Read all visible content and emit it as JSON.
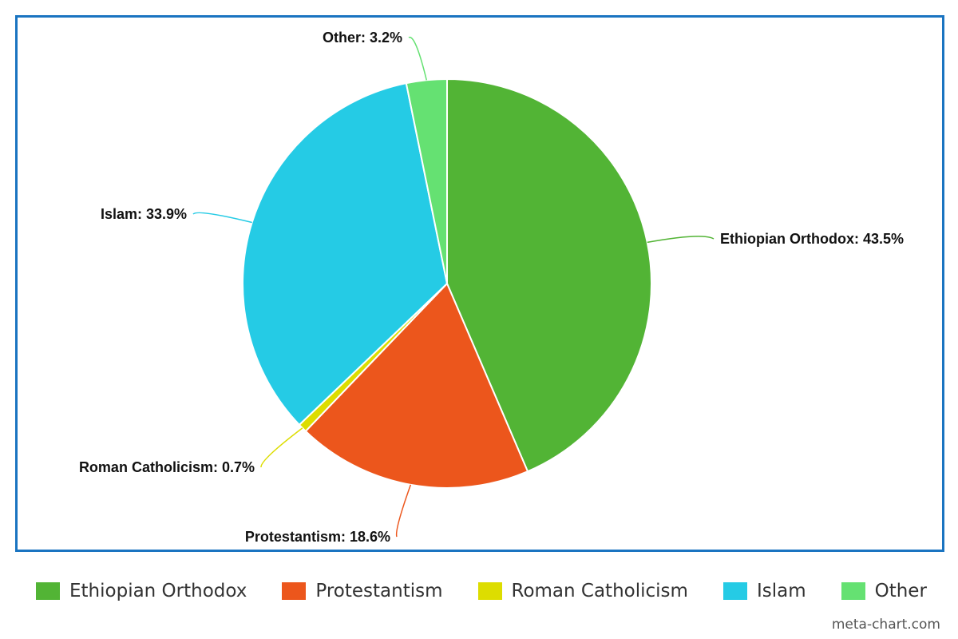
{
  "chart_data": {
    "type": "pie",
    "start_angle_deg": 0,
    "direction": "clockwise",
    "categories": [
      "Ethiopian Orthodox",
      "Protestantism",
      "Roman Catholicism",
      "Islam",
      "Other"
    ],
    "values": [
      43.5,
      18.6,
      0.7,
      33.9,
      3.2
    ],
    "labels": [
      "Ethiopian Orthodox: 43.5%",
      "Protestantism: 18.6%",
      "Roman Catholicism: 0.7%",
      "Islam: 33.9%",
      "Other: 3.2%"
    ],
    "colors": [
      "#52b435",
      "#ec561c",
      "#dddd00",
      "#25cbe5",
      "#65e172"
    ],
    "legend_position": "bottom"
  },
  "frame_color": "#1a74c1",
  "watermark": "meta-chart.com"
}
